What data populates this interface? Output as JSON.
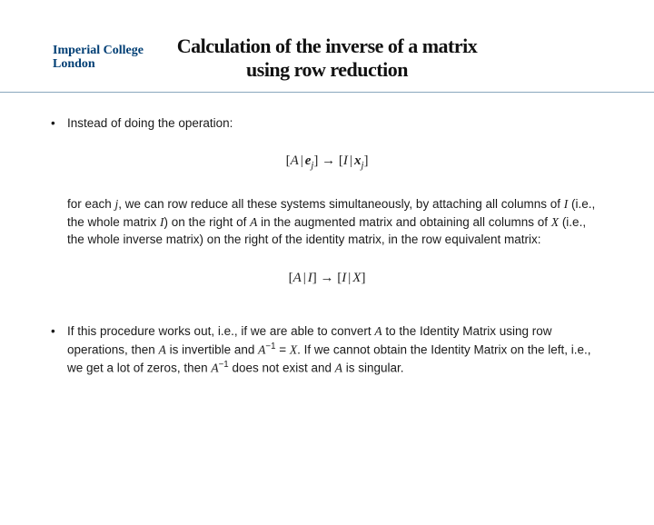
{
  "logo": {
    "line1": "Imperial College",
    "line2": "London",
    "color": "#003e74"
  },
  "title": {
    "line1": "Calculation of the inverse of a matrix",
    "line2": "using row reduction",
    "font_size": 22,
    "color": "#111111"
  },
  "rule_color": "#8aa7bd",
  "body_font_size": 13.5,
  "text_color": "#1a1a1a",
  "bullets": {
    "b1_intro": "Instead of doing the operation:",
    "b1_para1_a": "for each ",
    "b1_para1_b": ", we can row reduce all these systems simultaneously, by attaching all columns of ",
    "b1_para1_c": " (i.e., the whole matrix ",
    "b1_para1_d": ") on the right of ",
    "b1_para1_e": " in the augmented matrix and obtaining all columns of ",
    "b1_para1_f": " (i.e., the whole inverse matrix) on the right of the identity matrix, in the row equivalent matrix:",
    "b2_a": "If this procedure works out, i.e., if we are able to convert ",
    "b2_b": " to the Identity Matrix using row operations, then ",
    "b2_c": " is invertible and ",
    "b2_d": ". If we cannot obtain the Identity Matrix on the left, i.e., we get a lot of zeros, then ",
    "b2_e": " does not exist and ",
    "b2_f": " is singular."
  },
  "math": {
    "j": "j",
    "I": "I",
    "A": "A",
    "X": "X",
    "e": "e",
    "x": "x",
    "Ainv": "A",
    "inv_exp": "−1",
    "eq": " = "
  },
  "formulas": {
    "f1_left_open": "[",
    "f1_A": "A",
    "f1_pipe": " | ",
    "f1_e": "e",
    "f1_j1": "j",
    "f1_close1": "]",
    "f1_arrow": " → ",
    "f1_open2": "[",
    "f1_I": "I",
    "f1_pipe2": " | ",
    "f1_x": "x",
    "f1_j2": "j",
    "f1_close2": "]",
    "f2_open1": "[",
    "f2_A": "A",
    "f2_pipe1": " | ",
    "f2_I1": "I",
    "f2_close1": "]",
    "f2_arrow": " → ",
    "f2_open2": "[",
    "f2_I2": "I",
    "f2_pipe2": " | ",
    "f2_X": "X",
    "f2_close2": "]"
  }
}
